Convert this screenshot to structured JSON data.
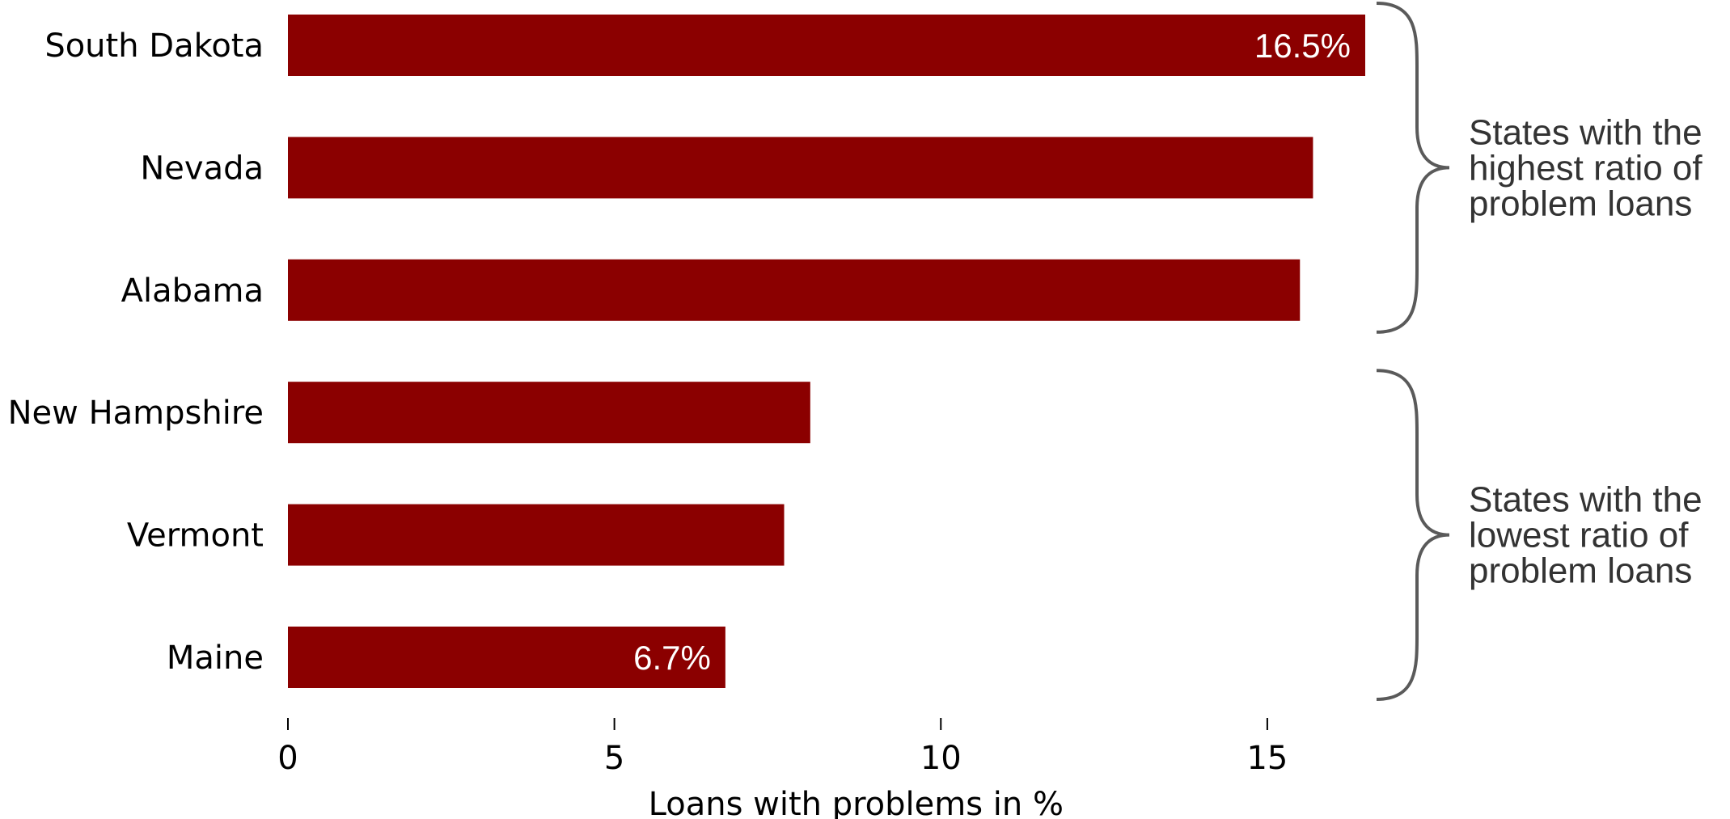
{
  "chart_data": {
    "type": "bar",
    "orientation": "horizontal",
    "categories": [
      "South Dakota",
      "Nevada",
      "Alabama",
      "New Hampshire",
      "Vermont",
      "Maine"
    ],
    "values": [
      16.5,
      15.7,
      15.5,
      8.0,
      7.6,
      6.7
    ],
    "data_labels": [
      {
        "index": 0,
        "text": "16.5%"
      },
      {
        "index": 5,
        "text": "6.7%"
      }
    ],
    "title": "",
    "xlabel": "Loans with problems in %",
    "ylabel": "",
    "xlim": [
      0,
      16.5
    ],
    "xticks": [
      0,
      5,
      10,
      15
    ],
    "xtick_labels": [
      "0",
      "5",
      "10",
      "15"
    ],
    "grid": false,
    "legend": "none",
    "bar_color": "#8b0000",
    "annotations": [
      {
        "group": [
          0,
          2
        ],
        "lines": [
          "States with the",
          "highest ratio of",
          "problem loans"
        ]
      },
      {
        "group": [
          3,
          5
        ],
        "lines": [
          "States with the",
          "lowest ratio of",
          "problem loans"
        ]
      }
    ]
  }
}
